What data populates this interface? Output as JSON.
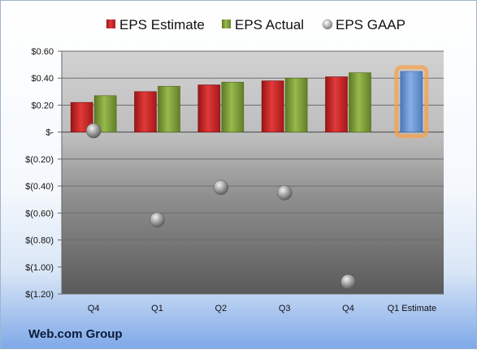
{
  "company_label": "Web.com Group",
  "colors": {
    "estimate": "#d42a2a",
    "actual": "#86a83c",
    "gaap": "#a9a9a9",
    "forecast": "#6c9ad6",
    "forecast_glow": "#f5a04a"
  },
  "chart_data": {
    "type": "bar",
    "title": "",
    "xlabel": "",
    "ylabel": "",
    "categories": [
      "Q4",
      "Q1",
      "Q2",
      "Q3",
      "Q4",
      "Q1 Estimate"
    ],
    "series": [
      {
        "name": "EPS Estimate",
        "values": [
          0.22,
          0.3,
          0.35,
          0.38,
          0.41,
          null
        ]
      },
      {
        "name": "EPS Actual",
        "values": [
          0.27,
          0.34,
          0.37,
          0.4,
          0.44,
          0.45
        ]
      },
      {
        "name": "EPS GAAP",
        "type": "scatter",
        "values": [
          0.01,
          -0.65,
          -0.41,
          -0.45,
          -1.11,
          null
        ]
      }
    ],
    "highlighted_point": {
      "category": "Q1 Estimate",
      "series": "EPS Actual",
      "value": 0.45
    },
    "ylim": [
      -1.2,
      0.6
    ],
    "yticks": [
      0.6,
      0.4,
      0.2,
      0,
      -0.2,
      -0.4,
      -0.6,
      -0.8,
      -1.0,
      -1.2
    ],
    "ytick_labels": [
      "$0.60",
      "$0.40",
      "$0.20",
      "$-",
      "$(0.20)",
      "$(0.40)",
      "$(0.60)",
      "$(0.80)",
      "$(1.00)",
      "$(1.20)"
    ],
    "legend_position": "top",
    "grid": true
  }
}
